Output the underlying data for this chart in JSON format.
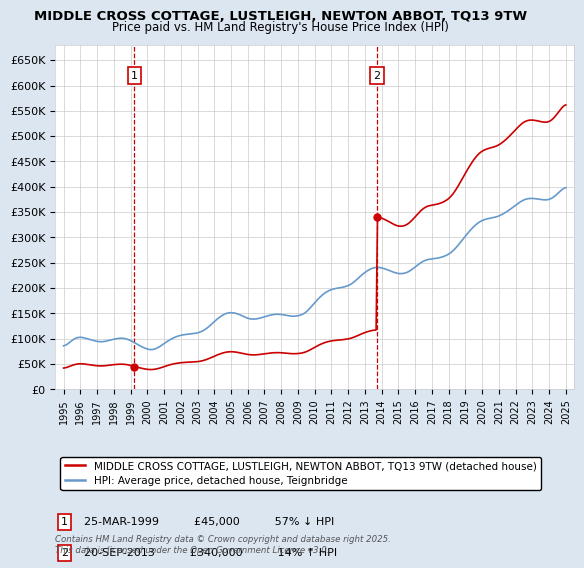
{
  "title": "MIDDLE CROSS COTTAGE, LUSTLEIGH, NEWTON ABBOT, TQ13 9TW",
  "subtitle": "Price paid vs. HM Land Registry's House Price Index (HPI)",
  "legend_line1": "MIDDLE CROSS COTTAGE, LUSTLEIGH, NEWTON ABBOT, TQ13 9TW (detached house)",
  "legend_line2": "HPI: Average price, detached house, Teignbridge",
  "annotation1": {
    "label": "1",
    "date_str": "25-MAR-1999",
    "price_str": "£45,000",
    "hpi_str": "57% ↓ HPI",
    "year": 1999.23,
    "value": 45000
  },
  "annotation2": {
    "label": "2",
    "date_str": "20-SEP-2013",
    "price_str": "£340,000",
    "hpi_str": "14% ↑ HPI",
    "year": 2013.72,
    "value": 340000
  },
  "footer": "Contains HM Land Registry data © Crown copyright and database right 2025.\nThis data is licensed under the Open Government Licence v3.0.",
  "red_color": "#cc0000",
  "blue_color": "#6699cc",
  "background_color": "#dce6f1",
  "plot_bg": "#ffffff",
  "grid_color": "#cccccc",
  "ylim": [
    0,
    680000
  ],
  "yticks": [
    0,
    50000,
    100000,
    150000,
    200000,
    250000,
    300000,
    350000,
    400000,
    450000,
    500000,
    550000,
    600000,
    650000
  ],
  "xlim_start": 1994.5,
  "xlim_end": 2025.5
}
